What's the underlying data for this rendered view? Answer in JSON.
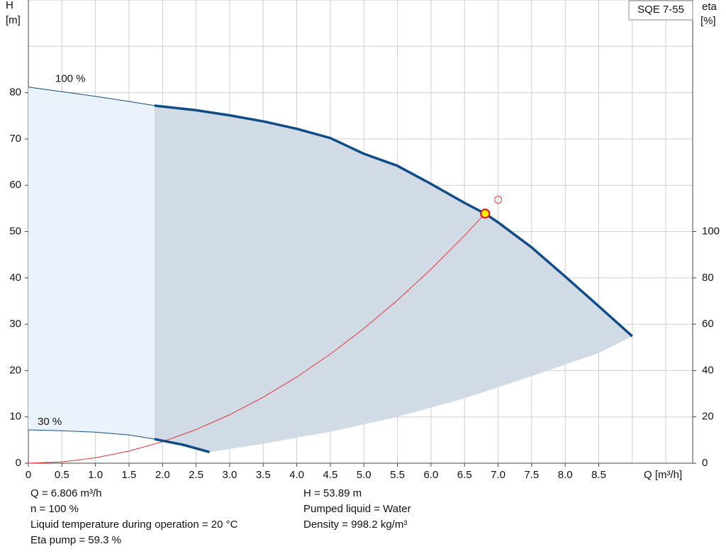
{
  "chart_data": {
    "type": "line",
    "title": "SQE 7-55",
    "y_label": "H",
    "y_unit": "[m]",
    "y2_label": "eta",
    "y2_unit": "[%]",
    "x_label": "Q [m³/h]",
    "xlim": [
      0,
      9.9
    ],
    "ylim": [
      0,
      100
    ],
    "y2lim": [
      0,
      200
    ],
    "xticks": [
      0,
      {
        "value": 0.5,
        "label": "0.5"
      },
      {
        "value": 1,
        "label": "1.0"
      },
      {
        "value": 1.5,
        "label": "1.5"
      },
      {
        "value": 2,
        "label": "2.0"
      },
      {
        "value": 2.5,
        "label": "2.5"
      },
      {
        "value": 3,
        "label": "3.0"
      },
      {
        "value": 3.5,
        "label": "3.5"
      },
      {
        "value": 4,
        "label": "4.0"
      },
      {
        "value": 4.5,
        "label": "4.5"
      },
      {
        "value": 5,
        "label": "5.0"
      },
      {
        "value": 5.5,
        "label": "5.5"
      },
      {
        "value": 6,
        "label": "6.0"
      },
      {
        "value": 6.5,
        "label": "6.5"
      },
      {
        "value": 7,
        "label": "7.0"
      },
      {
        "value": 7.5,
        "label": "7.5"
      },
      {
        "value": 8,
        "label": "8.0"
      },
      {
        "value": 8.5,
        "label": "8.5"
      }
    ],
    "yticks": [
      0,
      10,
      20,
      30,
      40,
      50,
      60,
      70,
      80
    ],
    "y2ticks": [
      0,
      20,
      40,
      60,
      80,
      100
    ],
    "xgrid": [
      0,
      0.5,
      1,
      1.5,
      2,
      2.5,
      3,
      3.5,
      4,
      4.5,
      5,
      5.5,
      6,
      6.5,
      7,
      7.5,
      8,
      8.5,
      9,
      9.5
    ],
    "ygrid": [
      0,
      10,
      20,
      30,
      40,
      50,
      60,
      70,
      80,
      90,
      100
    ],
    "min_flow": 1.88,
    "series": [
      {
        "name": "100 %",
        "color": "#0f4c86",
        "x": [
          0,
          0.5,
          1,
          1.5,
          1.88,
          2.5,
          3,
          3.5,
          4,
          4.5,
          5,
          5.5,
          6,
          6.5,
          6.806,
          7,
          7.5,
          8,
          8.5,
          9
        ],
        "values": [
          81.2,
          80.2,
          79.2,
          78.1,
          77.2,
          76.2,
          75.1,
          73.8,
          72.2,
          70.2,
          66.8,
          64.2,
          60.3,
          56.2,
          53.89,
          52.0,
          46.6,
          40.3,
          33.9,
          27.4
        ]
      },
      {
        "name": "30 %",
        "color": "#0f4c86",
        "x": [
          0,
          0.5,
          1,
          1.5,
          1.88,
          2.3,
          2.7
        ],
        "values": [
          7.2,
          7.0,
          6.7,
          6.1,
          5.2,
          4.0,
          2.4
        ]
      }
    ],
    "area": {
      "x": [
        2.7,
        3.5,
        4.5,
        5.5,
        6.5,
        7.5,
        8.5,
        9
      ],
      "lower": [
        2.4,
        4.2,
        6.8,
        10.0,
        14.0,
        18.8,
        23.8,
        27.4
      ],
      "color": "#d0dbe6",
      "light_color": "#eaf3fc"
    },
    "system_curve": {
      "color": "#ee3333",
      "x": [
        0,
        0.5,
        1,
        1.5,
        2,
        2.5,
        3,
        3.5,
        4,
        4.5,
        5,
        5.5,
        6,
        6.5,
        6.806
      ],
      "values": [
        0,
        0.29,
        1.16,
        2.62,
        4.65,
        7.27,
        10.47,
        14.25,
        18.61,
        23.56,
        29.09,
        35.19,
        41.88,
        49.15,
        53.89
      ]
    },
    "operating_point": {
      "x": 6.806,
      "y": 53.89,
      "fill": "#ffee00",
      "stroke": "#dd1111"
    },
    "requested_point": {
      "x": 7.0,
      "y": 56.9,
      "stroke": "#ee4444"
    },
    "info_left": [
      "Q = 6.806 m³/h",
      "n = 100 %",
      "Liquid temperature during operation = 20 °C",
      "Eta pump = 59.3 %"
    ],
    "info_right": [
      "H = 53.89 m",
      "Pumped liquid = Water",
      "Density = 998.2 kg/m³"
    ]
  }
}
